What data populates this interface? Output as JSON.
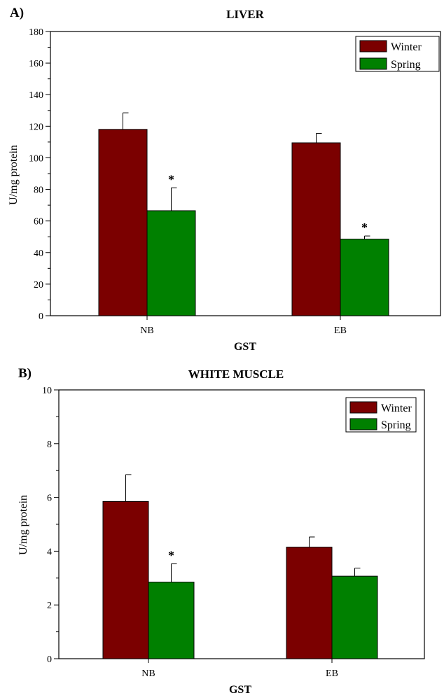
{
  "chart_data": [
    {
      "panel": "A)",
      "type": "bar",
      "title": "LIVER",
      "xlabel": "GST",
      "ylabel": "U/mg protein",
      "ylim": [
        0,
        180
      ],
      "yticks": [
        0,
        20,
        40,
        60,
        80,
        100,
        120,
        140,
        160,
        180
      ],
      "categories": [
        "NB",
        "EB"
      ],
      "series": [
        {
          "name": "Winter",
          "color": "#7B0000",
          "values": [
            118,
            109.5
          ],
          "errors": [
            10.5,
            6
          ]
        },
        {
          "name": "Spring",
          "color": "#008000",
          "values": [
            66.5,
            48.5
          ],
          "errors": [
            14.5,
            2
          ]
        }
      ],
      "significance": [
        {
          "category": "NB",
          "series": "Spring",
          "label": "*"
        },
        {
          "category": "EB",
          "series": "Spring",
          "label": "*"
        }
      ],
      "legend": "top-right",
      "grid": false
    },
    {
      "panel": "B)",
      "type": "bar",
      "title": "WHITE MUSCLE",
      "xlabel": "GST",
      "ylabel": "U/mg protein",
      "ylim": [
        0,
        10
      ],
      "yticks": [
        0,
        2,
        4,
        6,
        8,
        10
      ],
      "categories": [
        "NB",
        "EB"
      ],
      "series": [
        {
          "name": "Winter",
          "color": "#7B0000",
          "values": [
            5.85,
            4.15
          ],
          "errors": [
            1.0,
            0.38
          ]
        },
        {
          "name": "Spring",
          "color": "#008000",
          "values": [
            2.85,
            3.07
          ],
          "errors": [
            0.68,
            0.3
          ]
        }
      ],
      "significance": [
        {
          "category": "NB",
          "series": "Spring",
          "label": "*"
        }
      ],
      "legend": "top-right",
      "grid": false
    }
  ]
}
